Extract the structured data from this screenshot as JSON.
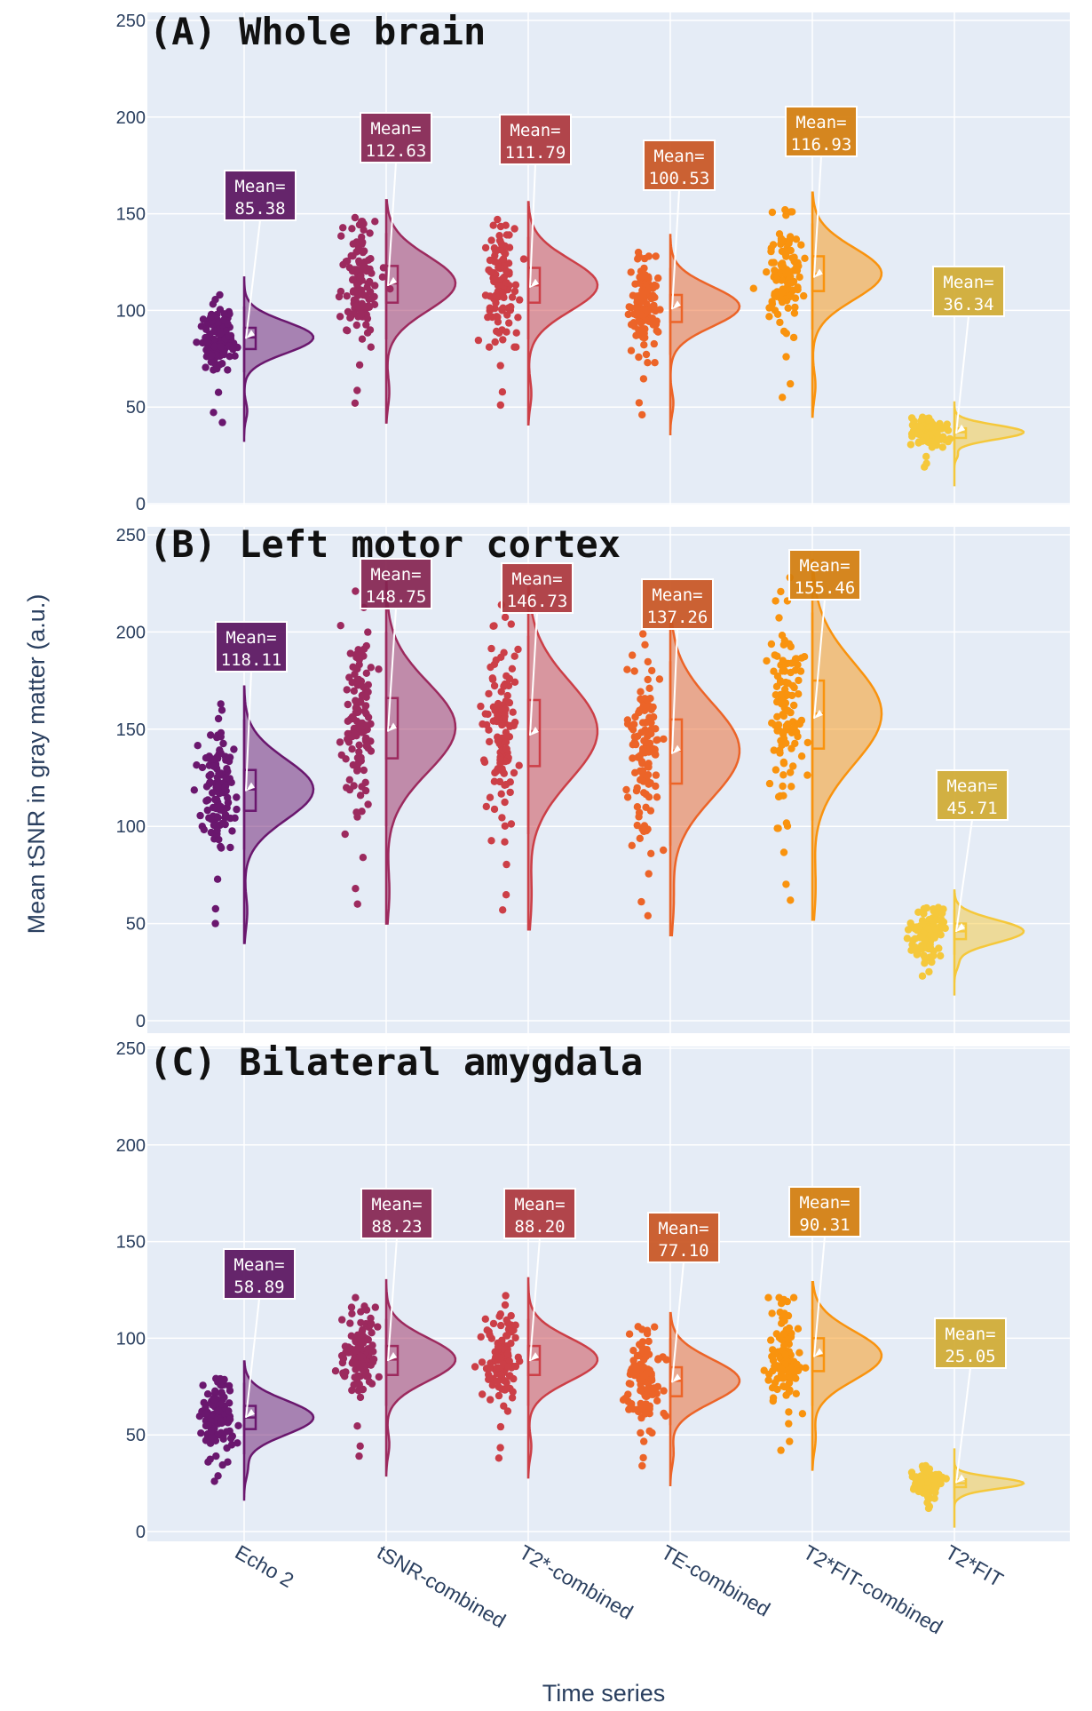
{
  "chart_data": {
    "type": "raincloud",
    "ylabel": "Mean tSNR in gray matter (a.u.)",
    "xlabel": "Time series",
    "categories": [
      "Echo 2",
      "tSNR-combined",
      "T2*-combined",
      "TE-combined",
      "T2*FIT-combined",
      "T2*FIT"
    ],
    "colors": [
      "#6a176e",
      "#9c2a5e",
      "#cc3f47",
      "#ec6428",
      "#f9930e",
      "#f5c83b"
    ],
    "ylim": [
      0,
      250
    ],
    "yticks": [
      0,
      50,
      100,
      150,
      200,
      250
    ],
    "annotation_label": "Mean=",
    "panels": [
      {
        "title": "(A) Whole brain",
        "series": [
          {
            "name": "Echo 2",
            "mean": 85.38,
            "median": 86,
            "q1": 80,
            "q3": 91,
            "lower": 68,
            "upper": 102,
            "min": 42,
            "max": 108
          },
          {
            "name": "tSNR-combined",
            "mean": 112.63,
            "median": 114,
            "q1": 104,
            "q3": 123,
            "lower": 85,
            "upper": 140,
            "min": 52,
            "max": 148
          },
          {
            "name": "T2*-combined",
            "mean": 111.79,
            "median": 113,
            "q1": 104,
            "q3": 122,
            "lower": 85,
            "upper": 138,
            "min": 51,
            "max": 147
          },
          {
            "name": "TE-combined",
            "mean": 100.53,
            "median": 102,
            "q1": 94,
            "q3": 108,
            "lower": 77,
            "upper": 122,
            "min": 46,
            "max": 130
          },
          {
            "name": "T2*FIT-combined",
            "mean": 116.93,
            "median": 119,
            "q1": 110,
            "q3": 128,
            "lower": 90,
            "upper": 145,
            "min": 55,
            "max": 152
          },
          {
            "name": "T2*FIT",
            "mean": 36.34,
            "median": 37,
            "q1": 34,
            "q3": 39,
            "lower": 28,
            "upper": 43,
            "min": 19,
            "max": 44
          }
        ]
      },
      {
        "title": "(B) Left motor cortex",
        "series": [
          {
            "name": "Echo 2",
            "mean": 118.11,
            "median": 119,
            "q1": 108,
            "q3": 129,
            "lower": 88,
            "upper": 155,
            "min": 50,
            "max": 163
          },
          {
            "name": "tSNR-combined",
            "mean": 148.75,
            "median": 151,
            "q1": 135,
            "q3": 166,
            "lower": 100,
            "upper": 200,
            "min": 60,
            "max": 221
          },
          {
            "name": "T2*-combined",
            "mean": 146.73,
            "median": 149,
            "q1": 131,
            "q3": 165,
            "lower": 96,
            "upper": 198,
            "min": 57,
            "max": 214
          },
          {
            "name": "TE-combined",
            "mean": 137.26,
            "median": 139,
            "q1": 122,
            "q3": 155,
            "lower": 90,
            "upper": 185,
            "min": 54,
            "max": 199
          },
          {
            "name": "T2*FIT-combined",
            "mean": 155.46,
            "median": 158,
            "q1": 140,
            "q3": 175,
            "lower": 103,
            "upper": 210,
            "min": 62,
            "max": 228
          },
          {
            "name": "T2*FIT",
            "mean": 45.71,
            "median": 46,
            "q1": 42,
            "q3": 50,
            "lower": 34,
            "upper": 57,
            "min": 23,
            "max": 58
          }
        ]
      },
      {
        "title": "(C) Bilateral amygdala",
        "series": [
          {
            "name": "Echo 2",
            "mean": 58.89,
            "median": 59,
            "q1": 53,
            "q3": 65,
            "lower": 40,
            "upper": 77,
            "min": 26,
            "max": 79
          },
          {
            "name": "tSNR-combined",
            "mean": 88.23,
            "median": 89,
            "q1": 81,
            "q3": 96,
            "lower": 65,
            "upper": 110,
            "min": 39,
            "max": 121
          },
          {
            "name": "T2*-combined",
            "mean": 88.2,
            "median": 89,
            "q1": 81,
            "q3": 96,
            "lower": 65,
            "upper": 110,
            "min": 38,
            "max": 122
          },
          {
            "name": "TE-combined",
            "mean": 77.1,
            "median": 78,
            "q1": 70,
            "q3": 85,
            "lower": 55,
            "upper": 100,
            "min": 34,
            "max": 104
          },
          {
            "name": "T2*FIT-combined",
            "mean": 90.31,
            "median": 91,
            "q1": 83,
            "q3": 100,
            "lower": 65,
            "upper": 115,
            "min": 42,
            "max": 120
          },
          {
            "name": "T2*FIT",
            "mean": 25.05,
            "median": 25,
            "q1": 23,
            "q3": 27,
            "lower": 17,
            "upper": 32,
            "min": 12,
            "max": 34
          }
        ]
      }
    ]
  }
}
